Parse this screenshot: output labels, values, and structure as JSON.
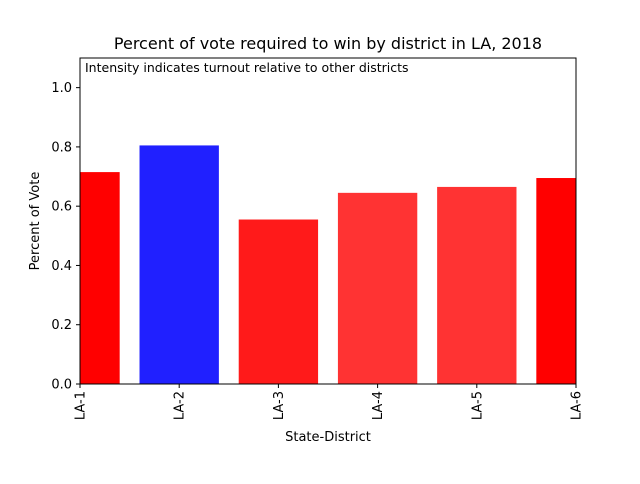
{
  "chart_data": {
    "type": "bar",
    "title": "Percent of vote required to win by district in LA, 2018",
    "annotation": "Intensity indicates turnout relative to other districts",
    "xlabel": "State-District",
    "ylabel": "Percent of Vote",
    "ylim": [
      0,
      1.1
    ],
    "yticks": [
      "0.0",
      "0.2",
      "0.4",
      "0.6",
      "0.8",
      "1.0"
    ],
    "grid": false,
    "categories": [
      "LA-1",
      "LA-2",
      "LA-3",
      "LA-4",
      "LA-5",
      "LA-6"
    ],
    "values": [
      0.715,
      0.805,
      0.555,
      0.645,
      0.665,
      0.695
    ],
    "colors": [
      "#ff0000",
      "#2020ff",
      "#ff1a1a",
      "#ff3333",
      "#ff3333",
      "#ff0000"
    ]
  }
}
